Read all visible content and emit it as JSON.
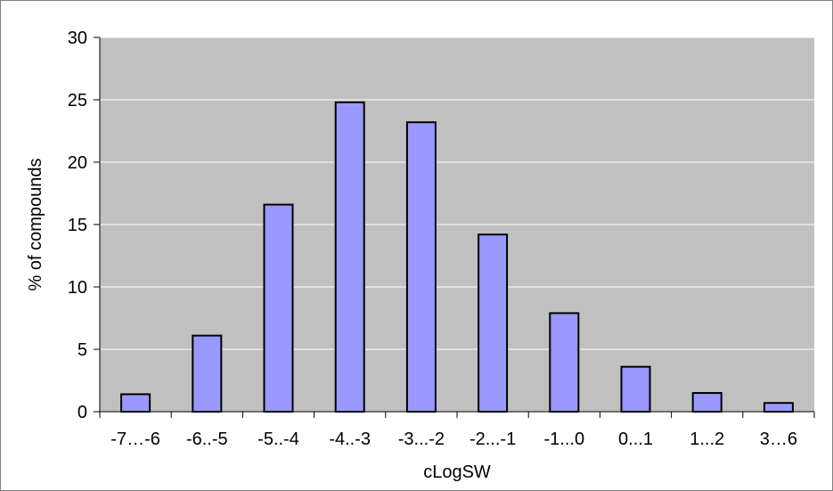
{
  "chart_data": {
    "type": "bar",
    "title": "",
    "xlabel": "cLogSW",
    "ylabel": "% of compounds",
    "categories": [
      "-7…-6",
      "-6..-5",
      "-5..-4",
      "-4..-3",
      "-3...-2",
      "-2...-1",
      "-1...0",
      "0...1",
      "1...2",
      "3…6"
    ],
    "values": [
      1.4,
      6.1,
      16.6,
      24.8,
      23.2,
      14.2,
      7.9,
      3.6,
      1.5,
      0.7
    ],
    "ylim": [
      0,
      30
    ],
    "yticks": [
      "0",
      "5",
      "10",
      "15",
      "20",
      "25",
      "30"
    ],
    "grid": true,
    "legend": "none",
    "colors": {
      "plot_background": "#c0c0c0",
      "bar_fill": "#9999ff",
      "bar_stroke": "#000000",
      "gridline": "#ffffff"
    }
  }
}
